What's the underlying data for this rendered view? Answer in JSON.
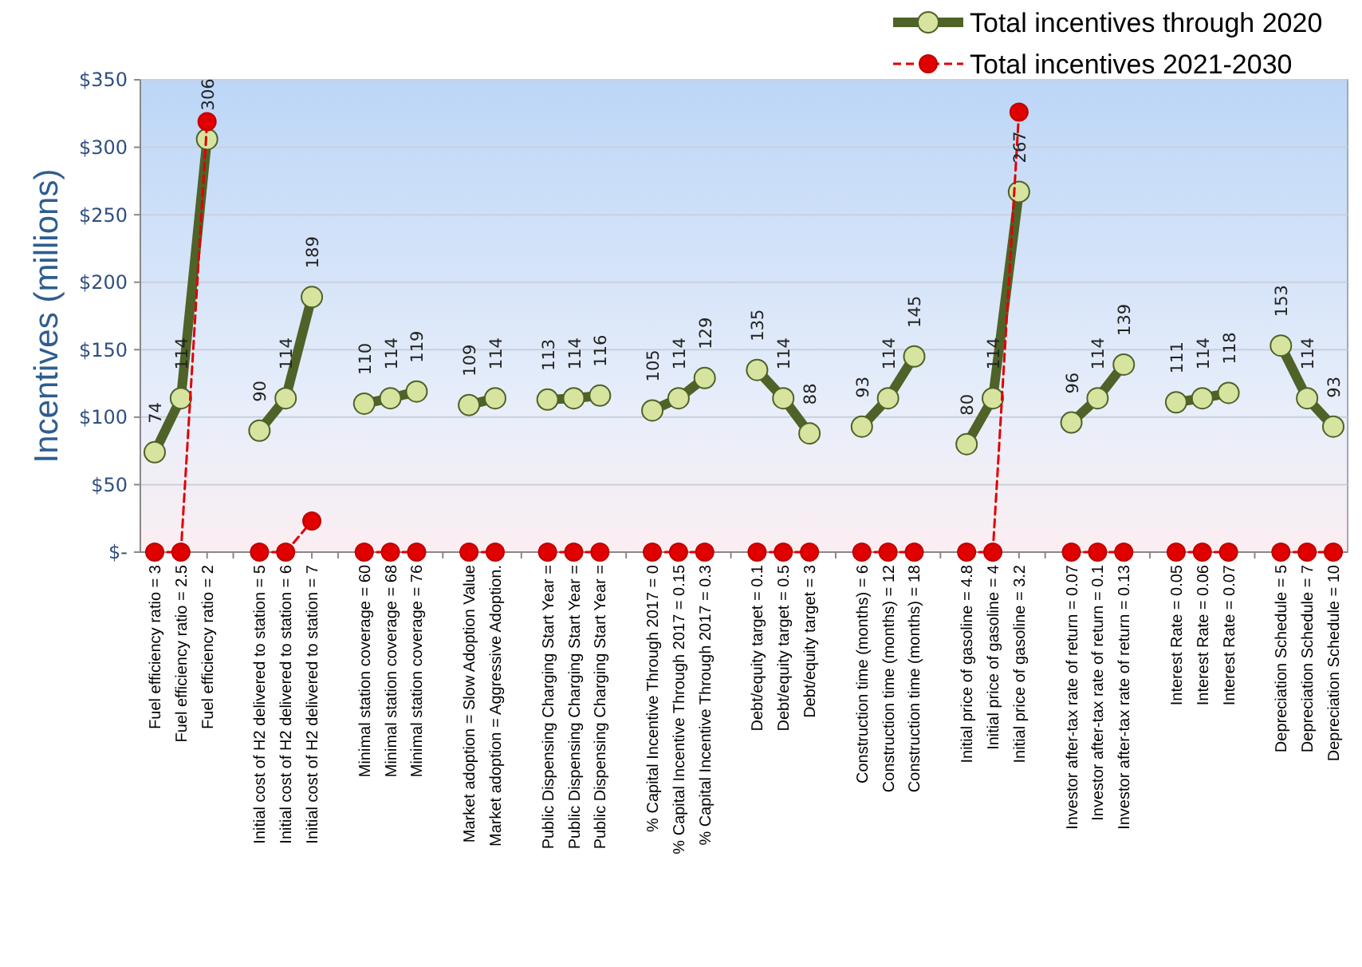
{
  "chart_data": {
    "type": "line",
    "ylabel": "Incentives (millions)",
    "categories": [
      "Fuel efficiency ratio = 3",
      "Fuel efficiency ratio = 2.5",
      "Fuel efficiency ratio = 2",
      null,
      "Initial cost of H2 delivered to station = 5",
      "Initial cost of H2 delivered to station = 6",
      "Initial cost of H2 delivered to station = 7",
      null,
      "Minimal station coverage = 60",
      "Minimal station coverage = 68",
      "Minimal station coverage = 76",
      null,
      "Market adoption = Slow Adoption Value",
      "Market adoption = Aggressive Adoption.",
      null,
      "Public Dispensing Charging Start Year =",
      "Public Dispensing Charging Start Year =",
      "Public Dispensing Charging Start Year =",
      null,
      "% Capital Incentive Through 2017 = 0",
      "% Capital Incentive Through 2017 = 0.15",
      "% Capital Incentive Through 2017 = 0.3",
      null,
      "Debt/equity target = 0.1",
      "Debt/equity target = 0.5",
      "Debt/equity target = 3",
      null,
      "Construction time (months) = 6",
      "Construction time (months) = 12",
      "Construction time (months) = 18",
      null,
      "Initial price of gasoline = 4.8",
      "Initial price of gasoline = 4",
      "Initial price of gasoline = 3.2",
      null,
      "Investor after-tax rate of return = 0.07",
      "Investor after-tax rate of return = 0.1",
      "Investor after-tax rate of return = 0.13",
      null,
      "Interest Rate = 0.05",
      "Interest Rate = 0.06",
      "Interest Rate = 0.07",
      null,
      "Depreciation Schedule = 5",
      "Depreciation Schedule = 7",
      "Depreciation Schedule = 10"
    ],
    "series": [
      {
        "name": "Total incentives through 2020",
        "color": "#4f6228",
        "marker": "circle",
        "line_style": "solid",
        "data_labels": true,
        "values": [
          74,
          114,
          306,
          null,
          90,
          114,
          189,
          null,
          110,
          114,
          119,
          null,
          109,
          114,
          null,
          113,
          114,
          116,
          null,
          105,
          114,
          129,
          null,
          135,
          114,
          88,
          null,
          93,
          114,
          145,
          null,
          80,
          114,
          267,
          null,
          96,
          114,
          139,
          null,
          111,
          114,
          118,
          null,
          153,
          114,
          93
        ]
      },
      {
        "name": "Total incentives 2021-2030",
        "color": "#e00000",
        "marker": "circle",
        "line_style": "dashed",
        "values": [
          0,
          0,
          319,
          null,
          0,
          0,
          23,
          null,
          0,
          0,
          0,
          null,
          0,
          0,
          null,
          0,
          0,
          0,
          null,
          0,
          0,
          0,
          null,
          0,
          0,
          0,
          null,
          0,
          0,
          0,
          null,
          0,
          0,
          326,
          null,
          0,
          0,
          0,
          null,
          0,
          0,
          0,
          null,
          0,
          0,
          0
        ]
      }
    ],
    "ylim": [
      0,
      350
    ],
    "yticks": [
      {
        "value": 0,
        "label": "$-"
      },
      {
        "value": 50,
        "label": "$50"
      },
      {
        "value": 100,
        "label": "$100"
      },
      {
        "value": 150,
        "label": "$150"
      },
      {
        "value": 200,
        "label": "$200"
      },
      {
        "value": 250,
        "label": "$250"
      },
      {
        "value": 300,
        "label": "$300"
      },
      {
        "value": 350,
        "label": "$350"
      }
    ],
    "grid": "y",
    "legend": "top right"
  }
}
